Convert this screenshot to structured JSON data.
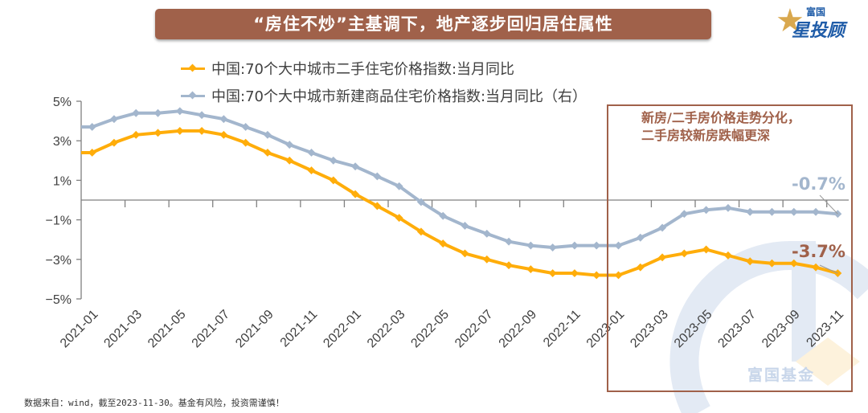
{
  "header": {
    "title": "“房住不炒”主基调下，地产逐步回归居住属性",
    "logo_top": "富国",
    "logo_main": "星投顾",
    "logo_icon": "star-icon"
  },
  "annotation": {
    "line1": "新房/二手房价格走势分化，",
    "line2": "二手房较新房跌幅更深",
    "end_label_new": "-0.7%",
    "end_label_second": "-3.7%"
  },
  "watermark": "富国基金",
  "footer": {
    "source": "数据来自：wind，截至2023-11-30。基金有风险，投资需谨慎！"
  },
  "colors": {
    "second_hand": "#ffad0a",
    "new_home": "#a3b6cd",
    "accent": "#a0614a",
    "axis": "#808080"
  },
  "chart_data": {
    "type": "line",
    "title": "“房住不炒”主基调下，地产逐步回归居住属性",
    "xlabel": "",
    "ylabel": "",
    "ylim": [
      -5,
      5
    ],
    "yticks": [
      "5%",
      "3%",
      "1%",
      "−1%",
      "−3%",
      "−5%"
    ],
    "ytick_values": [
      5,
      3,
      1,
      -1,
      -3,
      -5
    ],
    "legend_position": "top",
    "grid": false,
    "categories": [
      "2021-01",
      "2021-02",
      "2021-03",
      "2021-04",
      "2021-05",
      "2021-06",
      "2021-07",
      "2021-08",
      "2021-09",
      "2021-10",
      "2021-11",
      "2021-12",
      "2022-01",
      "2022-02",
      "2022-03",
      "2022-04",
      "2022-05",
      "2022-06",
      "2022-07",
      "2022-08",
      "2022-09",
      "2022-10",
      "2022-11",
      "2022-12",
      "2023-01",
      "2023-02",
      "2023-03",
      "2023-04",
      "2023-05",
      "2023-06",
      "2023-07",
      "2023-08",
      "2023-09",
      "2023-10",
      "2023-11"
    ],
    "xtick_labels": [
      "2021-01",
      "2021-03",
      "2021-05",
      "2021-07",
      "2021-09",
      "2021-11",
      "2022-01",
      "2022-03",
      "2022-05",
      "2022-07",
      "2022-09",
      "2022-11",
      "2023-01",
      "2023-03",
      "2023-05",
      "2023-07",
      "2023-09",
      "2023-11"
    ],
    "series": [
      {
        "name": "中国:70个大中城市二手住宅价格指数:当月同比",
        "color": "#ffad0a",
        "values": [
          2.4,
          2.9,
          3.3,
          3.4,
          3.5,
          3.5,
          3.3,
          2.9,
          2.4,
          2.0,
          1.5,
          1.0,
          0.3,
          -0.3,
          -0.9,
          -1.6,
          -2.2,
          -2.7,
          -3.0,
          -3.3,
          -3.5,
          -3.7,
          -3.7,
          -3.8,
          -3.8,
          -3.4,
          -2.9,
          -2.7,
          -2.5,
          -2.8,
          -3.1,
          -3.2,
          -3.2,
          -3.4,
          -3.7
        ]
      },
      {
        "name": "中国:70个大中城市新建商品住宅价格指数:当月同比（右）",
        "color": "#a3b6cd",
        "values": [
          3.7,
          4.1,
          4.4,
          4.4,
          4.5,
          4.3,
          4.1,
          3.7,
          3.3,
          2.8,
          2.4,
          2.0,
          1.7,
          1.2,
          0.7,
          -0.1,
          -0.8,
          -1.3,
          -1.7,
          -2.1,
          -2.3,
          -2.4,
          -2.3,
          -2.3,
          -2.3,
          -1.9,
          -1.4,
          -0.7,
          -0.5,
          -0.4,
          -0.6,
          -0.6,
          -0.6,
          -0.6,
          -0.7
        ]
      }
    ]
  }
}
